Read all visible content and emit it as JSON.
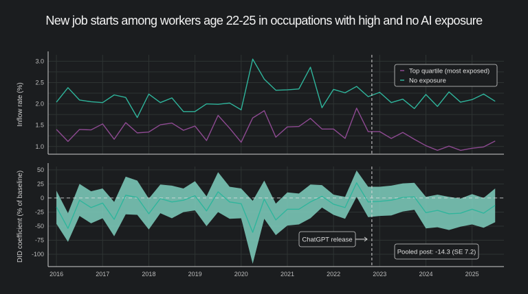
{
  "title": "New job starts among workers age 22-25 in occupations with high and no AI exposure",
  "colors": {
    "background": "#1b1d1f",
    "teal": "#2fb59c",
    "purple": "#8e4a92",
    "band": "#7fd0bf",
    "grid": "#2e3433"
  },
  "chart_data": [
    {
      "type": "line",
      "ylabel": "Inflow rate (%)",
      "xlim": [
        2015.82,
        2025.69
      ],
      "ylim": [
        0.82,
        3.15
      ],
      "yticks": [
        "1.0",
        "1.5",
        "2.0",
        "2.5",
        "3.0"
      ],
      "grid": true,
      "legend_placement": "top-right",
      "x": [
        2016.0,
        2016.25,
        2016.5,
        2016.75,
        2017.0,
        2017.25,
        2017.5,
        2017.75,
        2018.0,
        2018.25,
        2018.5,
        2018.75,
        2019.0,
        2019.25,
        2019.5,
        2019.75,
        2020.0,
        2020.25,
        2020.5,
        2020.75,
        2021.0,
        2021.25,
        2021.5,
        2021.75,
        2022.0,
        2022.25,
        2022.5,
        2022.75,
        2023.0,
        2023.25,
        2023.5,
        2023.75,
        2024.0,
        2024.25,
        2024.5,
        2024.75,
        2025.0,
        2025.25,
        2025.5
      ],
      "series": [
        {
          "name": "Top quartile (most exposed)",
          "color": "#8e4a92",
          "values": [
            1.4,
            1.12,
            1.4,
            1.39,
            1.53,
            1.17,
            1.56,
            1.32,
            1.34,
            1.51,
            1.55,
            1.38,
            1.48,
            1.14,
            1.73,
            1.43,
            1.1,
            1.67,
            1.84,
            1.22,
            1.46,
            1.47,
            1.66,
            1.41,
            1.41,
            1.19,
            1.9,
            1.35,
            1.35,
            1.19,
            1.33,
            1.17,
            1.02,
            0.91,
            1.01,
            0.91,
            0.96,
            0.99,
            1.13
          ]
        },
        {
          "name": "No exposure",
          "color": "#2fb59c",
          "values": [
            2.04,
            2.38,
            2.09,
            2.05,
            2.03,
            2.21,
            2.15,
            1.68,
            2.23,
            2.03,
            2.14,
            1.82,
            1.82,
            2.0,
            1.99,
            2.02,
            1.86,
            3.05,
            2.58,
            2.32,
            2.33,
            2.35,
            2.86,
            1.91,
            2.34,
            2.26,
            2.41,
            2.17,
            2.27,
            2.03,
            2.11,
            1.89,
            2.22,
            1.94,
            2.28,
            2.04,
            2.1,
            2.23,
            2.06
          ]
        }
      ],
      "vline": {
        "x": 2022.83
      }
    },
    {
      "type": "area",
      "ylabel": "DID coefficient (% of baseline)",
      "xlim": [
        2015.82,
        2025.69
      ],
      "ylim": [
        -122,
        56
      ],
      "yticks": [
        "50",
        "25",
        "0",
        "-25",
        "-50",
        "-75",
        "-100"
      ],
      "xticks": [
        "2016",
        "2017",
        "2018",
        "2019",
        "2020",
        "2021",
        "2022",
        "2023",
        "2024",
        "2025"
      ],
      "grid": true,
      "x": [
        2016.0,
        2016.25,
        2016.5,
        2016.75,
        2017.0,
        2017.25,
        2017.5,
        2017.75,
        2018.0,
        2018.25,
        2018.5,
        2018.75,
        2019.0,
        2019.25,
        2019.5,
        2019.75,
        2020.0,
        2020.25,
        2020.5,
        2020.75,
        2021.0,
        2021.25,
        2021.5,
        2021.75,
        2022.0,
        2022.25,
        2022.5,
        2022.75,
        2023.0,
        2023.25,
        2023.5,
        2023.75,
        2024.0,
        2024.25,
        2024.5,
        2024.75,
        2025.0,
        2025.25,
        2025.5
      ],
      "estimate": [
        -16,
        -54,
        -4,
        -17,
        -9,
        -38,
        5,
        1,
        -28,
        -1,
        -7,
        -4,
        4,
        -23,
        11,
        -7,
        -10,
        -61,
        -2,
        -39,
        -20,
        -20,
        -7,
        3,
        -11,
        -17,
        27,
        -7,
        -6,
        -4,
        1,
        2,
        -26,
        -22,
        -28,
        -27,
        -20,
        -27,
        -13
      ],
      "upper": [
        13,
        -27,
        25,
        12,
        17,
        -7,
        38,
        31,
        -1,
        24,
        22,
        17,
        30,
        3,
        46,
        20,
        17,
        -5,
        31,
        -10,
        10,
        8,
        24,
        23,
        6,
        2,
        49,
        20,
        20,
        22,
        26,
        27,
        2,
        6,
        2,
        -1,
        7,
        0,
        17
      ],
      "lower": [
        -46,
        -78,
        -32,
        -45,
        -36,
        -68,
        -29,
        -30,
        -56,
        -27,
        -36,
        -25,
        -22,
        -50,
        -25,
        -37,
        -36,
        -117,
        -37,
        -66,
        -49,
        -47,
        -36,
        -17,
        -30,
        -37,
        2,
        -34,
        -32,
        -31,
        -24,
        -21,
        -54,
        -52,
        -57,
        -51,
        -47,
        -53,
        -43
      ],
      "zero_line": 0,
      "vline": {
        "x": 2022.83
      },
      "annotations": {
        "release": "ChatGPT release",
        "pooled": "Pooled post: -14.3 (SE 7.2)"
      }
    }
  ]
}
